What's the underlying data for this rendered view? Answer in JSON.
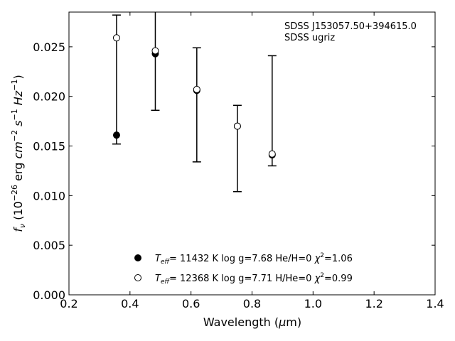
{
  "chart_data": {
    "type": "scatter",
    "title": "",
    "xlabel": {
      "main": "Wavelength (",
      "mu": "μ",
      "unit": "m)"
    },
    "ylabel": {
      "f": "f",
      "nu": "ν",
      "open": " (10",
      "exp1": "−26",
      "mid": " erg ",
      "cm": "cm",
      "exp2": "−2",
      "s": " s",
      "exp3": "−1",
      "hz": " Hz",
      "exp4": "−1",
      "close": ")"
    },
    "xlim": [
      0.2,
      1.4
    ],
    "ylim": [
      0.0,
      0.0285
    ],
    "xticks": [
      "0.2",
      "0.4",
      "0.6",
      "0.8",
      "1.0",
      "1.2",
      "1.4"
    ],
    "yticks": [
      "0.000",
      "0.005",
      "0.010",
      "0.015",
      "0.020",
      "0.025"
    ],
    "annotations": [
      "SDSS J153057.50+394615.0",
      "SDSS ugriz"
    ],
    "legend_position": "bottom-center",
    "observed": {
      "x": [
        0.356,
        0.483,
        0.619,
        0.752,
        0.866
      ],
      "y": [
        0.0161,
        0.0243,
        0.0206,
        0.017,
        0.0141
      ],
      "yerr_low": [
        0.0152,
        0.0186,
        0.0134,
        0.0104,
        0.013
      ],
      "yerr_high": [
        0.0282,
        0.03,
        0.0249,
        0.0191,
        0.0241
      ]
    },
    "series": [
      {
        "marker": "filled",
        "label": {
          "t": "T",
          "sub": "eff",
          "rest": "= 11432 K  log g=7.68  He/H=0  ",
          "chi": "χ",
          "sup": "2",
          "end": "=1.06"
        },
        "x": [
          0.356,
          0.483,
          0.619,
          0.752,
          0.866
        ],
        "y": [
          0.0161,
          0.0243,
          0.0206,
          0.017,
          0.0141
        ]
      },
      {
        "marker": "open",
        "label": {
          "t": "T",
          "sub": "eff",
          "rest": "= 12368 K  log g=7.71  H/He=0  ",
          "chi": "χ",
          "sup": "2",
          "end": "=0.99"
        },
        "x": [
          0.356,
          0.483,
          0.619,
          0.752,
          0.866
        ],
        "y": [
          0.0259,
          0.0246,
          0.0207,
          0.017,
          0.0142
        ]
      }
    ]
  }
}
